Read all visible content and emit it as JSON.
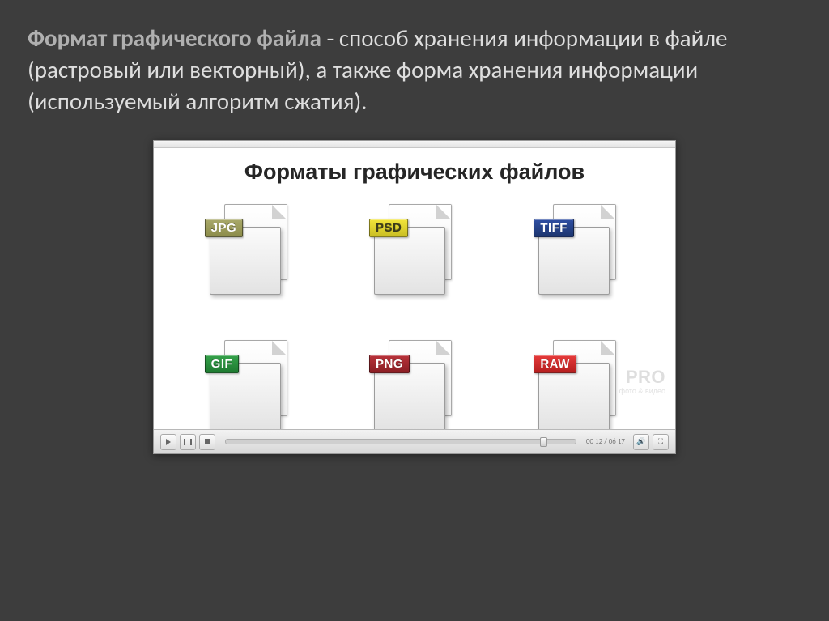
{
  "headline": {
    "term": "Формат графического файла",
    "rest": " - способ хранения информации в файле (растровый или векторный), а также форма хранения информации (используемый алгоритм сжатия)."
  },
  "panel": {
    "title": "Форматы графических файлов",
    "formats": [
      {
        "label": "JPG",
        "bg": "linear-gradient(#a9a96a,#8c8c4a)",
        "text_color": "#ffffff"
      },
      {
        "label": "PSD",
        "bg": "linear-gradient(#f2e53a,#c9be24)",
        "text_color": "#3b3b1a"
      },
      {
        "label": "TIFF",
        "bg": "linear-gradient(#2f4fa3,#1c356e)",
        "text_color": "#ffffff"
      },
      {
        "label": "GIF",
        "bg": "linear-gradient(#35a24a,#1f7a31)",
        "text_color": "#ffffff"
      },
      {
        "label": "PNG",
        "bg": "linear-gradient(#b8323a,#8a1e24)",
        "text_color": "#ffffff"
      },
      {
        "label": "RAW",
        "bg": "linear-gradient(#e63a3a,#b51f1f)",
        "text_color": "#ffffff"
      }
    ],
    "watermark_big": "PRO",
    "watermark_small": "фото & видео",
    "time": "00 12 / 06 17",
    "colors": {
      "slide_bg": "#3d3d3d",
      "panel_bg": "#ffffff",
      "file_border": "#9c9c9c"
    }
  }
}
